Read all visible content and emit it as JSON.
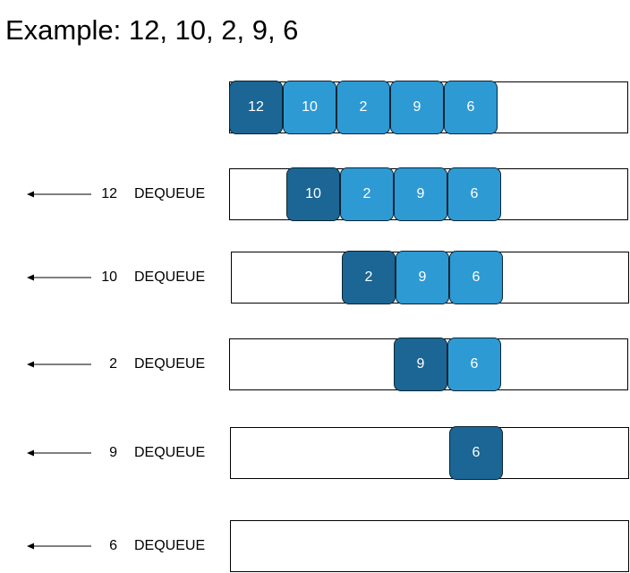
{
  "title": "Example: 12, 10, 2, 9, 6",
  "colors": {
    "front": "#1b6695",
    "rest": "#2e9ad4",
    "cell_border": "#0b2533",
    "box_border": "#000000"
  },
  "rows": [
    {
      "dequeued": "",
      "operation": "",
      "queue": [
        "12",
        "10",
        "2",
        "9",
        "6"
      ]
    },
    {
      "dequeued": "12",
      "operation": "DEQUEUE",
      "queue": [
        "10",
        "2",
        "9",
        "6"
      ]
    },
    {
      "dequeued": "10",
      "operation": "DEQUEUE",
      "queue": [
        "2",
        "9",
        "6"
      ]
    },
    {
      "dequeued": "2",
      "operation": "DEQUEUE",
      "queue": [
        "9",
        "6"
      ]
    },
    {
      "dequeued": "9",
      "operation": "DEQUEUE",
      "queue": [
        "6"
      ]
    },
    {
      "dequeued": "6",
      "operation": "DEQUEUE",
      "queue": []
    }
  ]
}
